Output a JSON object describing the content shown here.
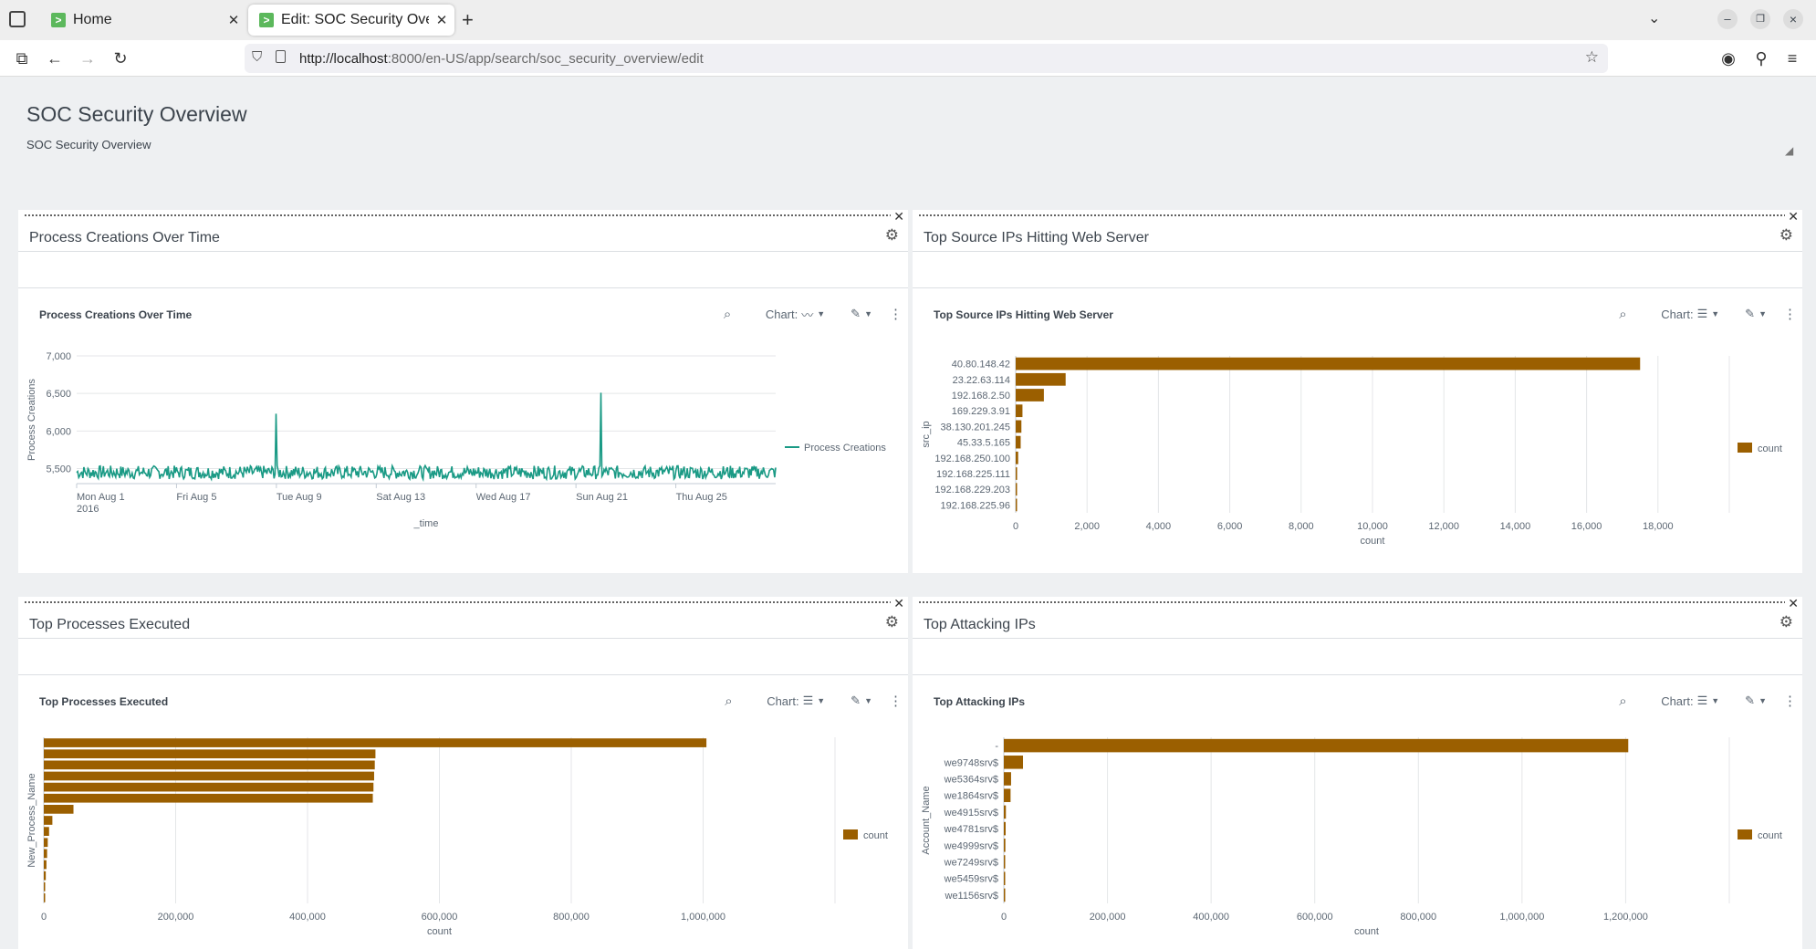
{
  "browser": {
    "tabs": [
      {
        "title": "Home",
        "favicon": ">"
      },
      {
        "title": "Edit: SOC Security Overvie",
        "favicon": ">"
      }
    ],
    "url_host": "http://localhost",
    "url_rest": ":8000/en-US/app/search/soc_security_overview/edit",
    "new_tab": "+",
    "window_controls": [
      "–",
      "❐",
      "×"
    ]
  },
  "dashboard": {
    "title": "SOC Security Overview",
    "description": "SOC Security Overview"
  },
  "toolbar": {
    "chart_label": "Chart:",
    "search_icon": "search-icon",
    "brush_icon": "brush-icon",
    "more_icon": "more-vertical-icon"
  },
  "panels": [
    {
      "title": "Process Creations Over Time",
      "viz_title": "Process Creations Over Time"
    },
    {
      "title": "Top Source IPs Hitting Web Server",
      "viz_title": "Top Source IPs Hitting Web Server"
    },
    {
      "title": "Top Processes Executed",
      "viz_title": "Top Processes Executed"
    },
    {
      "title": "Top Attacking IPs",
      "viz_title": "Top Attacking IPs"
    }
  ],
  "colors": {
    "line": "#1a9a85",
    "bar": "#9b5f00",
    "grid": "#e4e6e8",
    "axis": "#c3cbd4"
  },
  "chart_data": [
    {
      "type": "line",
      "title": "Process Creations Over Time",
      "xlabel": "_time",
      "ylabel": "Process Creations",
      "x_ticks": [
        {
          "label": "Mon Aug 1",
          "sub": "2016"
        },
        {
          "label": "Fri Aug 5"
        },
        {
          "label": "Tue Aug 9"
        },
        {
          "label": "Sat Aug 13"
        },
        {
          "label": "Wed Aug 17"
        },
        {
          "label": "Sun Aug 21"
        },
        {
          "label": "Thu Aug 25"
        }
      ],
      "y_ticks": [
        "7,000",
        "6,500",
        "6,000",
        "5,500"
      ],
      "ylim": [
        5300,
        7000
      ],
      "x_range": [
        "2016-08-01",
        "2016-08-29"
      ],
      "series": [
        {
          "name": "Process Creations"
        }
      ],
      "baseline_mean": 5450,
      "baseline_jitter": 90,
      "spikes": [
        {
          "date": "2016-08-09",
          "value": 6230
        },
        {
          "date": "2016-08-22",
          "value": 6510
        }
      ],
      "legend": "right"
    },
    {
      "type": "bar",
      "orientation": "horizontal",
      "title": "Top Source IPs Hitting Web Server",
      "xlabel": "count",
      "ylabel": "src_ip",
      "categories": [
        "40.80.148.42",
        "23.22.63.114",
        "192.168.2.50",
        "169.229.3.91",
        "38.130.201.245",
        "45.33.5.165",
        "192.168.250.100",
        "192.168.225.111",
        "192.168.229.203",
        "192.168.225.96"
      ],
      "values": [
        17500,
        1400,
        790,
        190,
        160,
        140,
        70,
        40,
        10,
        5
      ],
      "xlim": [
        0,
        20000
      ],
      "x_ticks": [
        "0",
        "2,000",
        "4,000",
        "6,000",
        "8,000",
        "10,000",
        "12,000",
        "14,000",
        "16,000",
        "18,000"
      ],
      "series": [
        {
          "name": "count"
        }
      ],
      "legend": "right"
    },
    {
      "type": "bar",
      "orientation": "horizontal",
      "title": "Top Processes Executed",
      "xlabel": "count",
      "ylabel": "New_Process_Name",
      "categories": [
        "",
        "",
        "",
        "",
        "",
        "",
        "",
        "",
        "",
        "",
        "",
        "",
        "",
        "",
        ""
      ],
      "values": [
        1005000,
        503000,
        502000,
        501000,
        500000,
        499000,
        45000,
        13000,
        8000,
        6000,
        5000,
        4000,
        3000,
        2000,
        1500
      ],
      "xlim": [
        0,
        1200000
      ],
      "x_ticks": [
        "0",
        "200,000",
        "400,000",
        "600,000",
        "800,000",
        "1,000,000"
      ],
      "series": [
        {
          "name": "count"
        }
      ],
      "legend": "right"
    },
    {
      "type": "bar",
      "orientation": "horizontal",
      "title": "Top Attacking IPs",
      "xlabel": "count",
      "ylabel": "Account_Name",
      "categories": [
        "-",
        "we9748srv$",
        "we5364srv$",
        "we1864srv$",
        "we4915srv$",
        "we4781srv$",
        "we4999srv$",
        "we7249srv$",
        "we5459srv$",
        "we1156srv$"
      ],
      "values": [
        1205000,
        37000,
        14000,
        13000,
        4000,
        3500,
        3000,
        2500,
        2000,
        1500
      ],
      "xlim": [
        0,
        1400000
      ],
      "x_ticks": [
        "0",
        "200,000",
        "400,000",
        "600,000",
        "800,000",
        "1,000,000",
        "1,200,000"
      ],
      "series": [
        {
          "name": "count"
        }
      ],
      "legend": "right"
    }
  ]
}
